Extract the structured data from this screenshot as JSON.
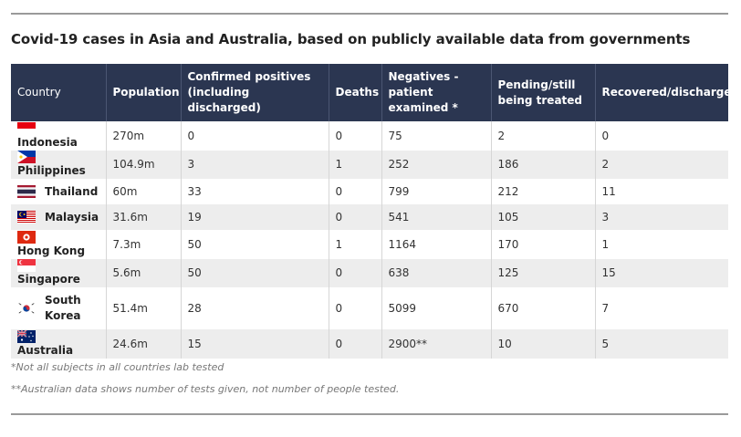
{
  "title": "Covid-19 cases in Asia and Australia, based on publicly available data from governments",
  "headers": {
    "country": "Country",
    "population": "Population",
    "confirmed": "Confirmed positives (including discharged)",
    "deaths": "Deaths",
    "negatives": "Negatives - patient examined *",
    "pending": "Pending/still being treated",
    "recovered": "Recovered/discharged"
  },
  "rows": [
    {
      "flag": "indonesia-flag",
      "country": "Indonesia",
      "population": "270m",
      "confirmed": "0",
      "deaths": "0",
      "negatives": "75",
      "pending": "2",
      "recovered": "0"
    },
    {
      "flag": "philippines-flag",
      "country": "Philippines",
      "population": "104.9m",
      "confirmed": "3",
      "deaths": "1",
      "negatives": "252",
      "pending": "186",
      "recovered": "2"
    },
    {
      "flag": "thailand-flag",
      "country": "Thailand",
      "population": "60m",
      "confirmed": "33",
      "deaths": "0",
      "negatives": "799",
      "pending": "212",
      "recovered": "11"
    },
    {
      "flag": "malaysia-flag",
      "country": "Malaysia",
      "population": "31.6m",
      "confirmed": "19",
      "deaths": "0",
      "negatives": "541",
      "pending": "105",
      "recovered": "3"
    },
    {
      "flag": "hong-kong-flag",
      "country": "Hong Kong",
      "population": "7.3m",
      "confirmed": "50",
      "deaths": "1",
      "negatives": "1164",
      "pending": "170",
      "recovered": "1"
    },
    {
      "flag": "singapore-flag",
      "country": "Singapore",
      "population": "5.6m",
      "confirmed": "50",
      "deaths": "0",
      "negatives": "638",
      "pending": "125",
      "recovered": "15"
    },
    {
      "flag": "south-korea-flag",
      "country": "South Korea",
      "population": "51.4m",
      "confirmed": "28",
      "deaths": "0",
      "negatives": "5099",
      "pending": "670",
      "recovered": "7"
    },
    {
      "flag": "australia-flag",
      "country": "Australia",
      "population": "24.6m",
      "confirmed": "15",
      "deaths": "0",
      "negatives": "2900**",
      "pending": "10",
      "recovered": "5"
    }
  ],
  "notes": [
    "*Not all subjects in all countries lab tested",
    "**Australian data shows number of tests given, not number of people tested."
  ],
  "colors": {
    "header_bg": "#2b3651",
    "row_alt": "#ededed",
    "rule": "#9a9a9a"
  }
}
